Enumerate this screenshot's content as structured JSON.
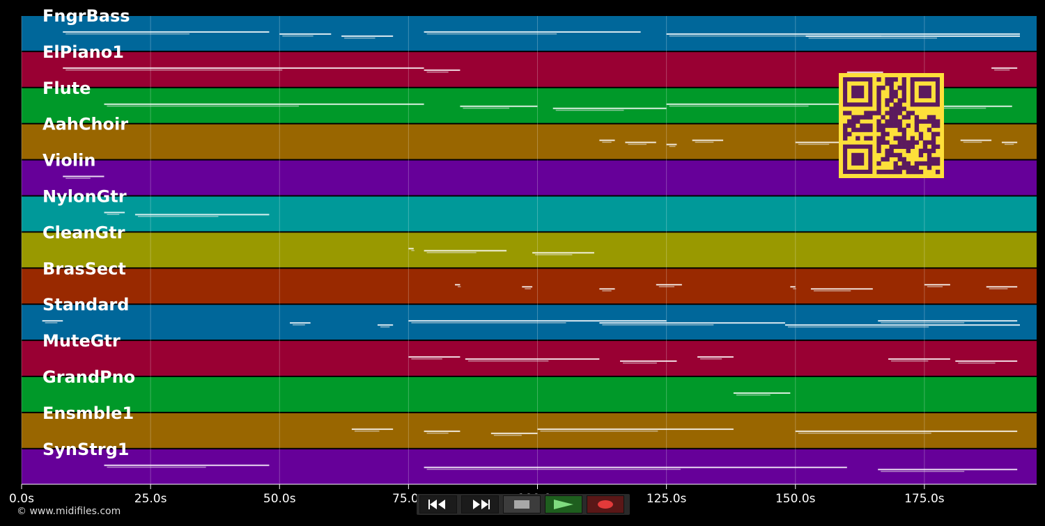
{
  "app": {
    "copyright": "© www.midifiles.com"
  },
  "timeline": {
    "ticks": [
      {
        "value": 0,
        "label": "0.0s"
      },
      {
        "value": 25,
        "label": "25.0s"
      },
      {
        "value": 50,
        "label": "50.0s"
      },
      {
        "value": 75,
        "label": "75.0s"
      },
      {
        "value": 100,
        "label": "100.0s"
      },
      {
        "value": 125,
        "label": "125.0s"
      },
      {
        "value": 150,
        "label": "150.0s"
      },
      {
        "value": 175,
        "label": "175.0s"
      }
    ],
    "x_range_seconds": [
      0,
      197
    ]
  },
  "tracks": [
    {
      "name": "FngrBass",
      "color": "#00679a",
      "segments": [
        [
          8,
          48
        ],
        [
          50,
          60
        ],
        [
          62,
          72
        ],
        [
          78,
          120
        ],
        [
          125,
          200
        ],
        [
          152,
          198
        ]
      ]
    },
    {
      "name": "ElPiano1",
      "color": "#990033",
      "segments": [
        [
          8,
          78
        ],
        [
          78,
          85
        ],
        [
          160,
          167
        ],
        [
          188,
          193
        ]
      ]
    },
    {
      "name": "Flute",
      "color": "#009929",
      "segments": [
        [
          16,
          78
        ],
        [
          85,
          100
        ],
        [
          103,
          125
        ],
        [
          125,
          170
        ],
        [
          178,
          192
        ]
      ]
    },
    {
      "name": "AahChoir",
      "color": "#996600",
      "segments": [
        [
          112,
          115
        ],
        [
          117,
          123
        ],
        [
          125,
          127
        ],
        [
          130,
          136
        ],
        [
          150,
          160
        ],
        [
          163,
          169
        ],
        [
          182,
          188
        ],
        [
          190,
          193
        ]
      ]
    },
    {
      "name": "Violin",
      "color": "#660099",
      "segments": [
        [
          8,
          16
        ]
      ]
    },
    {
      "name": "NylonGtr",
      "color": "#009999",
      "segments": [
        [
          16,
          20
        ],
        [
          22,
          48
        ]
      ]
    },
    {
      "name": "CleanGtr",
      "color": "#999900",
      "segments": [
        [
          75,
          76
        ],
        [
          78,
          94
        ],
        [
          99,
          111
        ]
      ]
    },
    {
      "name": "BrasSect",
      "color": "#992900",
      "segments": [
        [
          84,
          85
        ],
        [
          97,
          99
        ],
        [
          112,
          115
        ],
        [
          123,
          128
        ],
        [
          149,
          150
        ],
        [
          153,
          165
        ],
        [
          175,
          180
        ],
        [
          187,
          193
        ]
      ]
    },
    {
      "name": "Standard",
      "color": "#00679a",
      "segments": [
        [
          4,
          8
        ],
        [
          52,
          56
        ],
        [
          69,
          72
        ],
        [
          75,
          125
        ],
        [
          112,
          148
        ],
        [
          148,
          200
        ],
        [
          166,
          193
        ]
      ]
    },
    {
      "name": "MuteGtr",
      "color": "#990033",
      "segments": [
        [
          75,
          85
        ],
        [
          86,
          112
        ],
        [
          116,
          127
        ],
        [
          131,
          138
        ],
        [
          168,
          180
        ],
        [
          181,
          193
        ]
      ]
    },
    {
      "name": "GrandPno",
      "color": "#009929",
      "segments": [
        [
          138,
          149
        ]
      ]
    },
    {
      "name": "Ensmble1",
      "color": "#996600",
      "segments": [
        [
          64,
          72
        ],
        [
          78,
          85
        ],
        [
          91,
          100
        ],
        [
          100,
          138
        ],
        [
          150,
          193
        ]
      ]
    },
    {
      "name": "SynStrg1",
      "color": "#660099",
      "segments": [
        [
          16,
          48
        ],
        [
          78,
          160
        ],
        [
          166,
          193
        ]
      ]
    }
  ],
  "transport": {
    "rewind_icon": "rewind-icon",
    "forward_icon": "fast-forward-icon",
    "stop_icon": "stop-icon",
    "play_icon": "play-icon",
    "record_icon": "record-icon",
    "play_color": "#7fdc7f",
    "record_color": "#e23a3a"
  },
  "qr_colors": {
    "bg": "#fde03a",
    "fg": "#5b1a5e"
  }
}
